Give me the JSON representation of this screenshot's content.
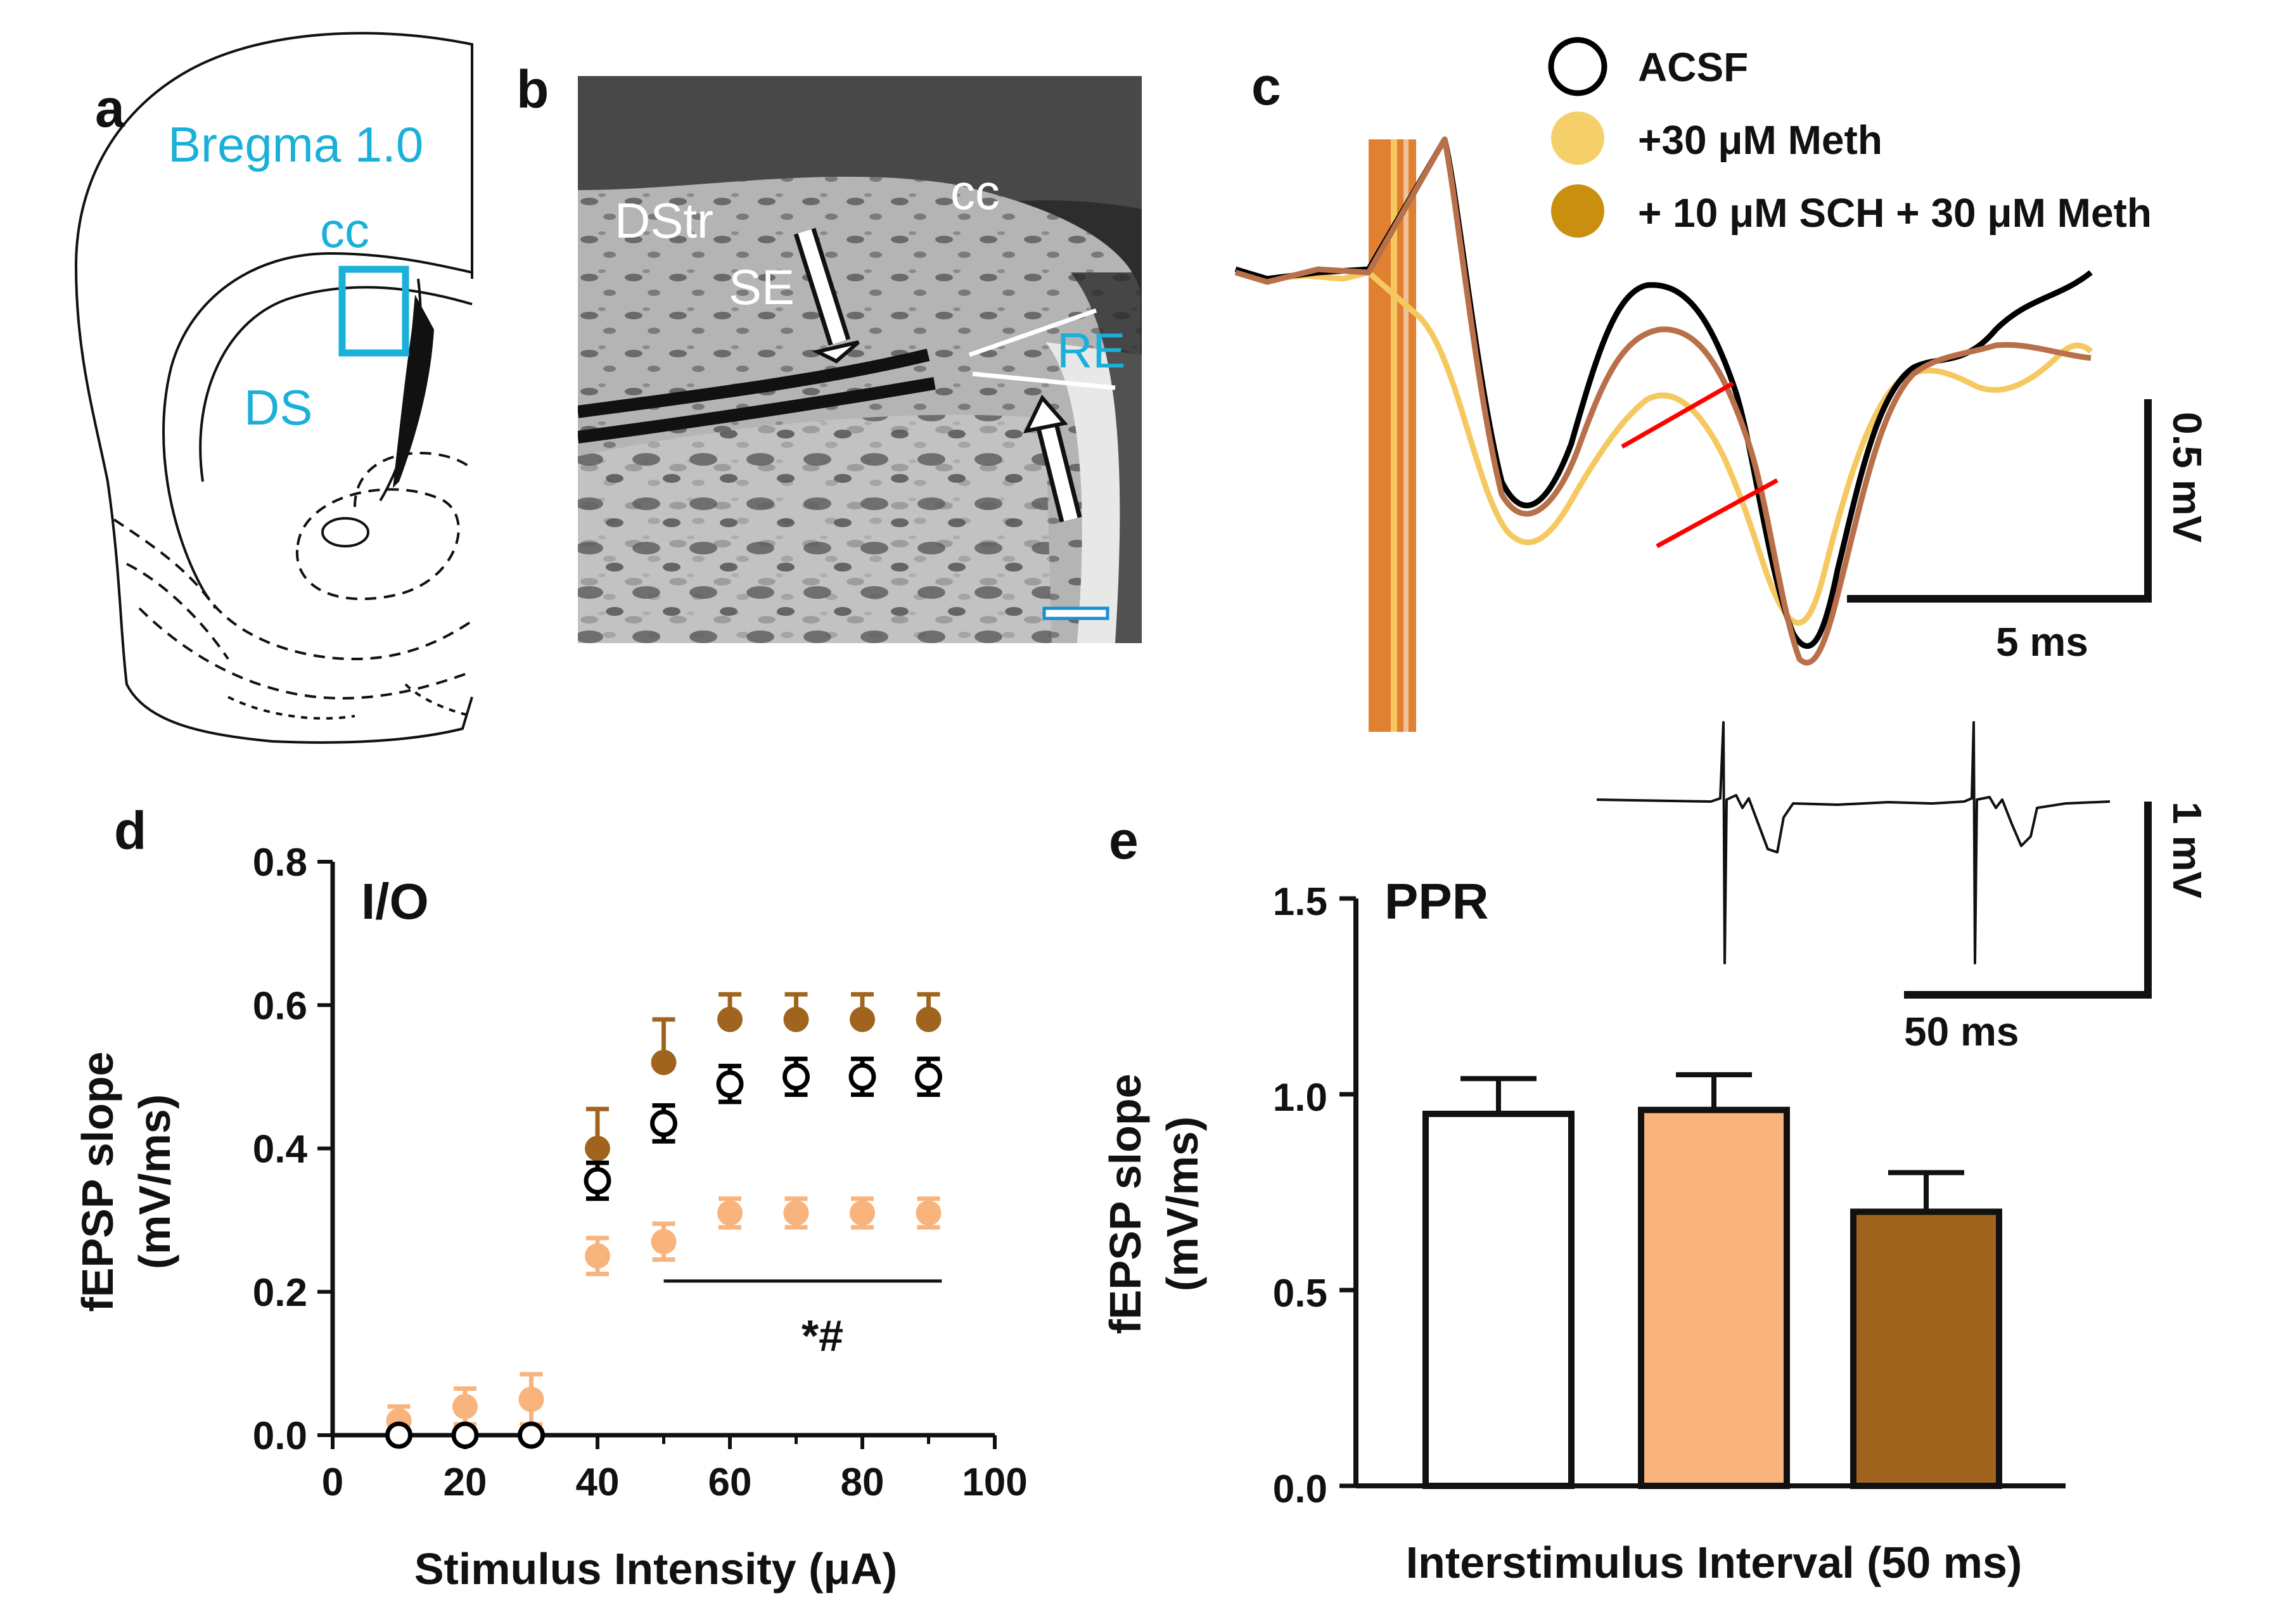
{
  "panels": {
    "a": {
      "letter": "a",
      "labels": {
        "bregma": "Bregma 1.0",
        "cc": "cc",
        "ds": "DS"
      },
      "colors": {
        "highlight": "#1ab0d8"
      }
    },
    "b": {
      "letter": "b",
      "labels": {
        "dstr": "DStr",
        "cc": "cc",
        "se": "SE",
        "re": "RE"
      }
    },
    "c": {
      "letter": "c",
      "legend": [
        {
          "label": "ACSF",
          "color": "#000000",
          "marker": "open-circle"
        },
        {
          "label": "+30 μM Meth",
          "color": "#f5d06a",
          "marker": "filled-circle"
        },
        {
          "label": "+ 10 μM SCH + 30 μM Meth",
          "color": "#c9900f",
          "marker": "filled-circle"
        }
      ],
      "scale": {
        "vertical_label": "0.5 mV",
        "horizontal_label": "5 ms"
      },
      "trace_colors": {
        "acsf": "#000000",
        "meth": "#f5c860",
        "sch_meth": "#b8704a",
        "slope_marker": "#ff0000"
      }
    },
    "e_inset": {
      "scale": {
        "vertical_label": "1 mV",
        "horizontal_label": "50 ms"
      }
    }
  },
  "chart_data": [
    {
      "panel": "d",
      "letter": "d",
      "type": "scatter",
      "title": "I/O",
      "xlabel": "Stimulus Intensity (μA)",
      "ylabel_line1": "fEPSP slope",
      "ylabel_line2": "(mV/ms)",
      "xlim": [
        0,
        100
      ],
      "ylim": [
        0,
        0.8
      ],
      "xticks": [
        "0",
        "20",
        "40",
        "60",
        "80",
        "100"
      ],
      "yticks": [
        "0.0",
        "0.2",
        "0.4",
        "0.6",
        "0.8"
      ],
      "significance": "*#",
      "significance_range": [
        50,
        92
      ],
      "series": [
        {
          "name": "+ 10 μM SCH + 30 μM Meth",
          "color": "#a0641e",
          "marker": "filled",
          "x": [
            40,
            50,
            60,
            70,
            80,
            90
          ],
          "y": [
            0.4,
            0.52,
            0.58,
            0.58,
            0.58,
            0.58
          ],
          "err": [
            0.055,
            0.06,
            0.035,
            0.035,
            0.035,
            0.035
          ]
        },
        {
          "name": "+30 μM Meth",
          "color": "#f8b47c",
          "marker": "filled",
          "x": [
            10,
            20,
            30,
            40,
            50,
            60,
            70,
            80,
            90
          ],
          "y": [
            0.02,
            0.04,
            0.05,
            0.25,
            0.27,
            0.31,
            0.31,
            0.31,
            0.31
          ],
          "err": [
            0.02,
            0.025,
            0.035,
            0.025,
            0.025,
            0.02,
            0.02,
            0.02,
            0.02
          ]
        },
        {
          "name": "ACSF",
          "color": "#000000",
          "marker": "open",
          "x": [
            10,
            20,
            30,
            40,
            50,
            60,
            70,
            80,
            90
          ],
          "y": [
            0.0,
            0.0,
            0.0,
            0.355,
            0.435,
            0.49,
            0.5,
            0.5,
            0.5
          ],
          "err": [
            0.0,
            0.0,
            0.0,
            0.025,
            0.025,
            0.025,
            0.025,
            0.025,
            0.025
          ]
        }
      ]
    },
    {
      "panel": "e",
      "letter": "e",
      "type": "bar",
      "title": "PPR",
      "xlabel": "Interstimulus Interval (50 ms)",
      "ylabel_line1": "fEPSP slope",
      "ylabel_line2": "(mV/ms)",
      "ylim": [
        0,
        1.5
      ],
      "yticks": [
        "0.0",
        "0.5",
        "1.0",
        "1.5"
      ],
      "categories": [
        "ACSF",
        "+30 μM Meth",
        "+ 10 μM SCH + 30 μM Meth"
      ],
      "values": [
        0.95,
        0.96,
        0.7
      ],
      "err": [
        0.09,
        0.09,
        0.1
      ],
      "colors": [
        "#ffffff",
        "#f8b47c",
        "#a0641e"
      ]
    }
  ]
}
